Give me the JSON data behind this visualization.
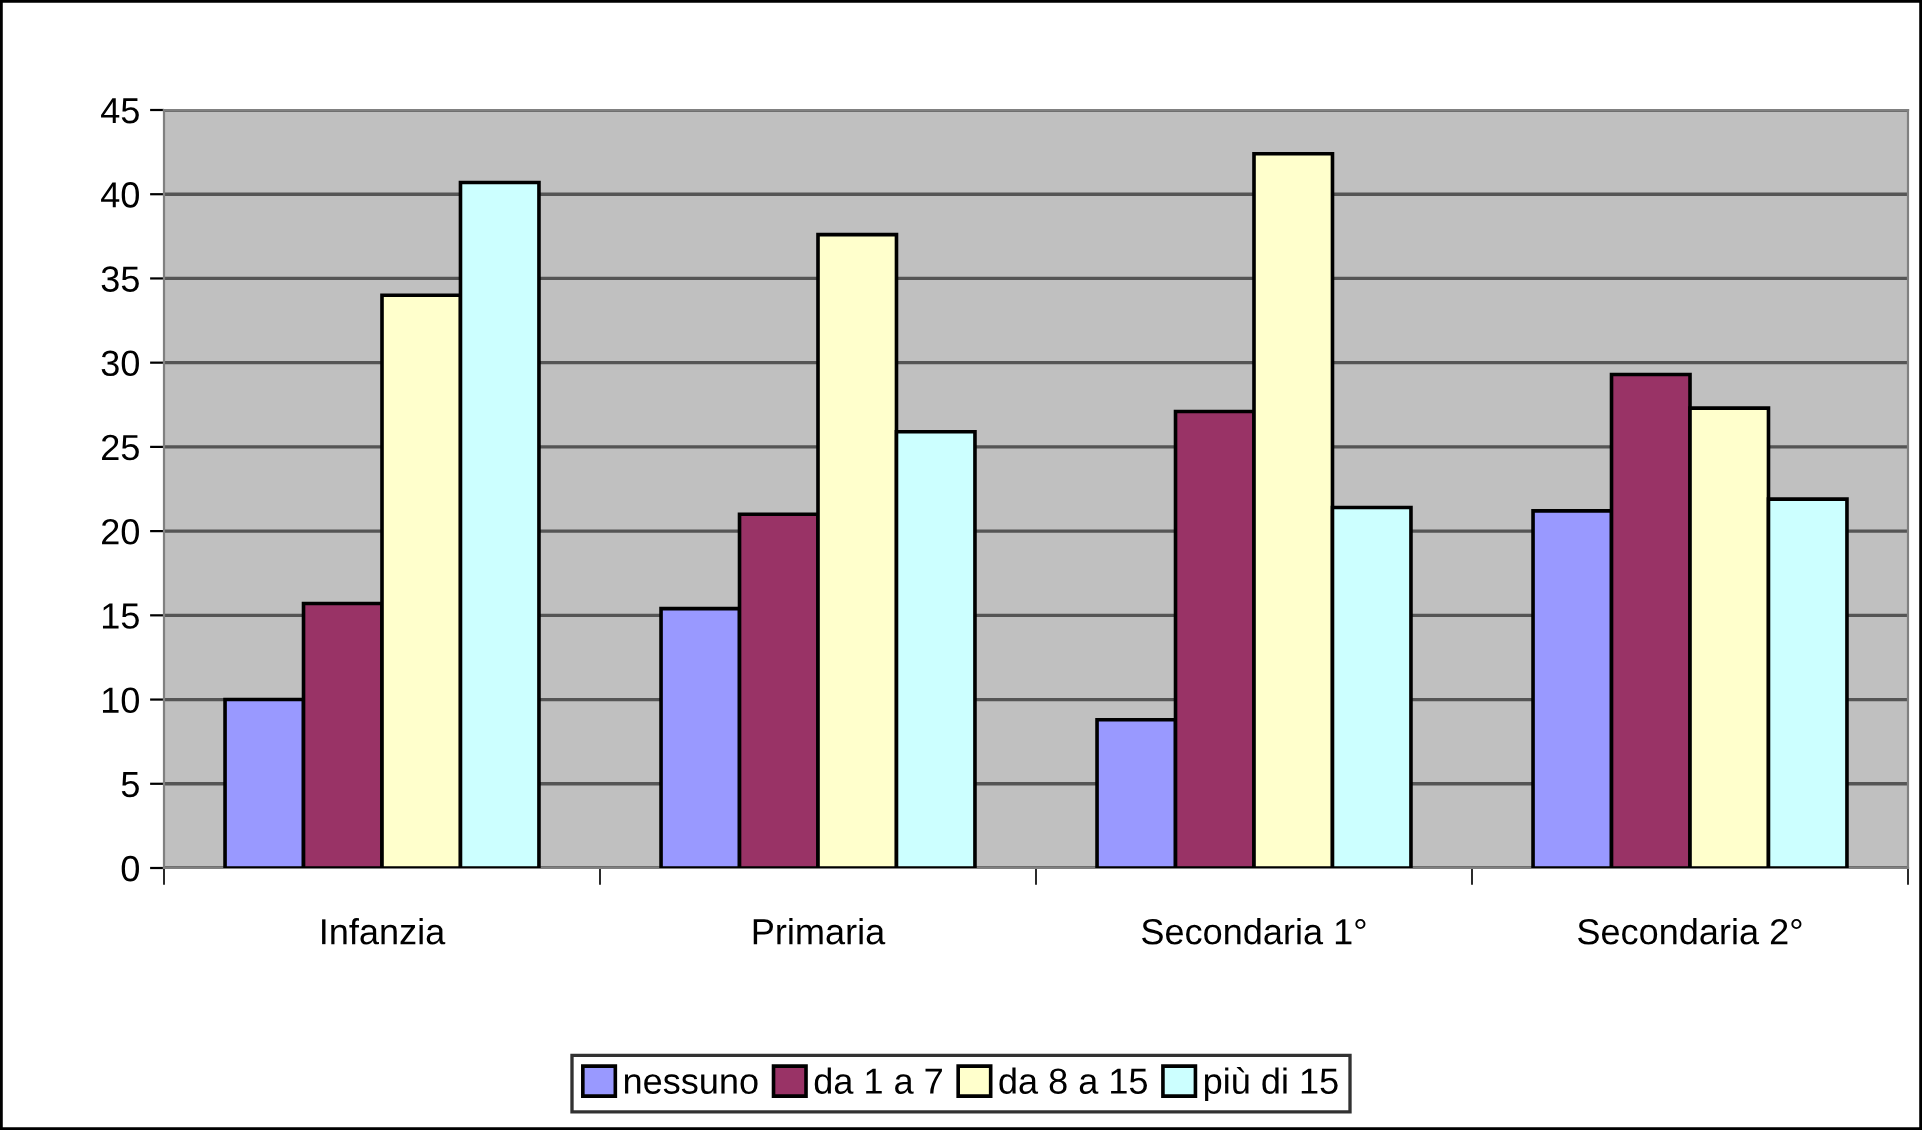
{
  "chart_data": {
    "type": "bar",
    "categories": [
      "Infanzia",
      "Primaria",
      "Secondaria 1°",
      "Secondaria 2°"
    ],
    "series": [
      {
        "name": "nessuno",
        "color": "#9999ff",
        "values": [
          10.0,
          15.4,
          8.8,
          21.2
        ]
      },
      {
        "name": "da 1 a 7",
        "color": "#993366",
        "values": [
          15.7,
          21.0,
          27.1,
          29.3
        ]
      },
      {
        "name": "da 8 a 15",
        "color": "#ffffcc",
        "values": [
          34.0,
          37.6,
          42.4,
          27.3
        ]
      },
      {
        "name": "più di 15",
        "color": "#ccffff",
        "values": [
          40.7,
          25.9,
          21.4,
          21.9
        ]
      }
    ],
    "ylim": [
      0,
      45
    ],
    "yticks": [
      0,
      5,
      10,
      15,
      20,
      25,
      30,
      35,
      40,
      45
    ],
    "grid": "y",
    "legend": "bottom"
  }
}
